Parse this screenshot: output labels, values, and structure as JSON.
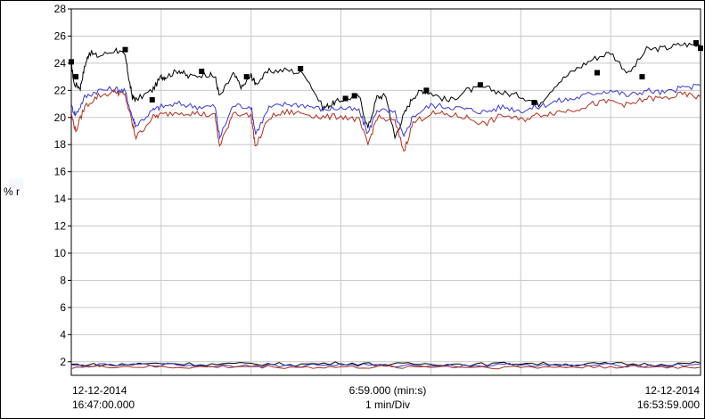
{
  "chart_data": {
    "type": "line",
    "ylabel": "% r",
    "ylim": [
      1,
      28
    ],
    "yticks": [
      2,
      4,
      6,
      8,
      10,
      12,
      14,
      16,
      18,
      20,
      22,
      24,
      26,
      28
    ],
    "xlim_minutes": [
      0,
      7
    ],
    "x_divisions": 7,
    "grid": true,
    "footer": {
      "start_date": "12-12-2014",
      "start_time": "16:47:00.000",
      "span": "6:59.000 (min:s)",
      "scale": "1 min/Div",
      "end_date": "12-12-2014",
      "end_time": "16:53:59.000"
    },
    "colors": {
      "black": "#000000",
      "blue": "#3a3ad0",
      "red": "#b03020",
      "pink": "#e070a0"
    },
    "series": [
      {
        "color": "#000000",
        "marker": "square",
        "x": [
          0,
          0.03,
          0.1,
          0.15,
          0.2,
          0.3,
          0.5,
          0.6,
          0.65,
          0.68,
          0.72,
          0.9,
          1.0,
          1.05,
          1.2,
          1.3,
          1.5,
          1.6,
          1.65,
          1.8,
          1.9,
          2.0,
          2.05,
          2.2,
          2.4,
          2.6,
          2.8,
          2.9,
          3.0,
          3.2,
          3.3,
          3.4,
          3.5,
          3.6,
          3.7,
          3.8,
          3.9,
          4.0,
          4.2,
          4.4,
          4.6,
          4.8,
          5.0,
          5.2,
          5.4,
          5.6,
          5.8,
          6.0,
          6.2,
          6.4,
          6.6,
          6.8,
          7.0
        ],
        "y": [
          24,
          22.5,
          22.2,
          23.8,
          24.8,
          24.5,
          25.0,
          24.5,
          22.5,
          21.5,
          21.3,
          22.0,
          23.0,
          23.0,
          23.5,
          23.0,
          23.2,
          23.0,
          21.5,
          23.2,
          22.2,
          23.1,
          22.5,
          23.4,
          23.5,
          23.2,
          20.7,
          21.0,
          21.3,
          21.6,
          19.2,
          21.5,
          21.6,
          18.5,
          20.2,
          21.5,
          22.0,
          21.8,
          21.2,
          22.0,
          22.2,
          21.8,
          21.6,
          21.0,
          22.5,
          23.5,
          24.3,
          24.8,
          23.2,
          25.0,
          25.1,
          25.4,
          25.3
        ],
        "marker_x": [
          0,
          0.05,
          0.6,
          0.9,
          1.45,
          1.95,
          2.55,
          3.05,
          3.15,
          3.95,
          4.55,
          5.15,
          5.85,
          6.35,
          6.95,
          7.0
        ],
        "marker_y": [
          24.1,
          23.0,
          25.0,
          21.3,
          23.4,
          23.0,
          23.6,
          21.4,
          21.6,
          22.0,
          22.4,
          21.1,
          23.3,
          23.0,
          25.5,
          25.1
        ]
      },
      {
        "color": "#3a3ad0",
        "x": [
          0,
          0.05,
          0.15,
          0.3,
          0.5,
          0.6,
          0.68,
          0.72,
          0.9,
          1.0,
          1.2,
          1.4,
          1.6,
          1.65,
          1.8,
          2.0,
          2.05,
          2.2,
          2.4,
          2.6,
          2.8,
          3.0,
          3.2,
          3.3,
          3.4,
          3.6,
          3.7,
          3.8,
          4.0,
          4.2,
          4.4,
          4.6,
          4.8,
          5.0,
          5.2,
          5.4,
          5.6,
          5.8,
          6.0,
          6.2,
          6.4,
          6.6,
          6.8,
          7.0
        ],
        "y": [
          20.8,
          20.2,
          21.5,
          22.0,
          22.1,
          21.9,
          20.0,
          19.4,
          20.5,
          20.8,
          21.0,
          20.8,
          20.8,
          18.5,
          20.9,
          20.8,
          18.8,
          20.7,
          21.0,
          20.9,
          20.6,
          20.7,
          20.5,
          18.8,
          20.6,
          20.3,
          18.5,
          20.1,
          20.9,
          20.8,
          20.6,
          20.4,
          20.8,
          20.5,
          20.8,
          21.2,
          21.4,
          21.8,
          22.0,
          21.6,
          22.0,
          21.8,
          22.2,
          22.3
        ]
      },
      {
        "color": "#b03020",
        "x": [
          0,
          0.05,
          0.15,
          0.3,
          0.5,
          0.6,
          0.68,
          0.72,
          0.9,
          1.0,
          1.2,
          1.4,
          1.6,
          1.65,
          1.8,
          2.0,
          2.05,
          2.2,
          2.4,
          2.6,
          2.8,
          3.0,
          3.2,
          3.3,
          3.4,
          3.6,
          3.7,
          3.8,
          4.0,
          4.2,
          4.4,
          4.6,
          4.8,
          5.0,
          5.2,
          5.4,
          5.6,
          5.8,
          6.0,
          6.2,
          6.4,
          6.6,
          6.8,
          7.0
        ],
        "y": [
          20.2,
          19.0,
          20.8,
          21.6,
          21.9,
          21.6,
          19.5,
          18.5,
          20.0,
          20.2,
          20.4,
          20.3,
          20.1,
          17.8,
          20.4,
          20.1,
          17.8,
          20.0,
          20.4,
          20.3,
          20.0,
          20.1,
          19.8,
          18.0,
          20.0,
          19.7,
          17.5,
          19.6,
          20.3,
          20.2,
          20.0,
          19.5,
          20.2,
          19.8,
          20.2,
          20.4,
          20.6,
          21.0,
          21.2,
          20.9,
          21.4,
          21.4,
          21.7,
          21.5
        ]
      },
      {
        "color": "#000000",
        "x": [
          0,
          0.5,
          1.0,
          1.5,
          2.0,
          2.5,
          3.0,
          3.5,
          4.0,
          4.5,
          5.0,
          5.5,
          6.0,
          6.5,
          7.0
        ],
        "y": [
          1.8,
          1.75,
          1.9,
          1.8,
          1.85,
          1.8,
          1.9,
          1.8,
          1.85,
          1.8,
          1.9,
          1.8,
          1.85,
          1.8,
          1.9
        ]
      },
      {
        "color": "#3a3ad0",
        "x": [
          0,
          0.5,
          1.0,
          1.5,
          2.0,
          2.5,
          3.0,
          3.5,
          4.0,
          4.5,
          5.0,
          5.5,
          6.0,
          6.5,
          7.0
        ],
        "y": [
          1.7,
          1.75,
          1.8,
          1.7,
          1.75,
          1.7,
          1.8,
          1.7,
          1.75,
          1.7,
          1.8,
          1.7,
          1.75,
          1.7,
          1.8
        ]
      },
      {
        "color": "#b03020",
        "x": [
          0,
          0.5,
          1.0,
          1.5,
          2.0,
          2.5,
          3.0,
          3.5,
          4.0,
          4.5,
          5.0,
          5.5,
          6.0,
          6.5,
          7.0
        ],
        "y": [
          1.6,
          1.65,
          1.6,
          1.6,
          1.65,
          1.6,
          1.6,
          1.6,
          1.65,
          1.6,
          1.6,
          1.6,
          1.65,
          1.6,
          1.6
        ]
      }
    ]
  }
}
